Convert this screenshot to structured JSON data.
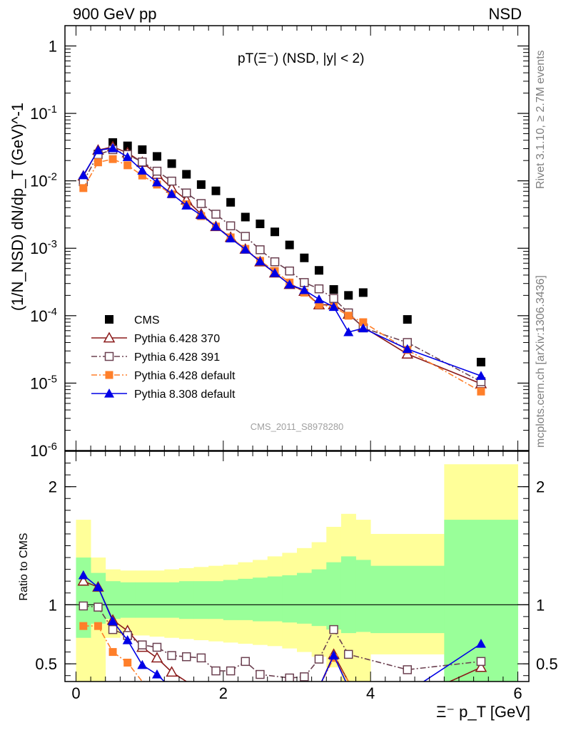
{
  "header": {
    "left": "900 GeV pp",
    "right": "NSD"
  },
  "side_text": {
    "top": "Rivet 3.1.10, ≥ 2.7M events",
    "bottom": "mcplots.cern.ch [arXiv:1306.3436]"
  },
  "watermark": "CMS_2011_S8978280",
  "chart_data": [
    {
      "type": "scatter",
      "panel": "main",
      "title": "pT(Ξ⁻) (NSD, |y| < 2)",
      "ylabel": "(1/N_NSD) dN/dp_T (GeV)^-1",
      "xlim": [
        -0.15,
        6.15
      ],
      "ylim": [
        1e-06,
        2
      ],
      "yscale": "log",
      "yticks": [
        "10^-6",
        "10^-5",
        "10^-4",
        "10^-3",
        "10^-2",
        "10^-1",
        "1"
      ],
      "legend": "lower-left",
      "series": [
        {
          "name": "CMS",
          "color": "#000000",
          "marker": "square-filled",
          "line": "none",
          "x": [
            0.1,
            0.3,
            0.5,
            0.7,
            0.9,
            1.1,
            1.3,
            1.5,
            1.7,
            1.9,
            2.1,
            2.3,
            2.5,
            2.7,
            2.9,
            3.1,
            3.3,
            3.5,
            3.7,
            3.9,
            4.5,
            5.5
          ],
          "y": [
            0.0098,
            0.025,
            0.037,
            0.033,
            0.029,
            0.023,
            0.018,
            0.0125,
            0.0088,
            0.0071,
            0.0048,
            0.0029,
            0.0023,
            0.00175,
            0.00112,
            0.00072,
            0.00047,
            0.000245,
            0.0002,
            0.00022,
            8.8e-05,
            2.05e-05
          ]
        },
        {
          "name": "Pythia 6.428 370",
          "color": "#8b1a1a",
          "marker": "triangle-open",
          "line": "solid",
          "x": [
            0.1,
            0.3,
            0.5,
            0.7,
            0.9,
            1.1,
            1.3,
            1.5,
            1.7,
            1.9,
            2.1,
            2.3,
            2.5,
            2.7,
            2.9,
            3.1,
            3.3,
            3.5,
            3.7,
            3.9,
            4.5,
            5.5
          ],
          "y": [
            0.0118,
            0.0285,
            0.032,
            0.026,
            0.0188,
            0.0125,
            0.0078,
            0.0052,
            0.0032,
            0.0021,
            0.00145,
            0.00097,
            0.00063,
            0.00043,
            0.00029,
            0.00023,
            0.000145,
            0.000145,
            0.000105,
            6.8e-05,
            2.7e-05,
            9.8e-06
          ]
        },
        {
          "name": "Pythia 6.428 391",
          "color": "#6b4050",
          "marker": "square-open",
          "line": "dashdot",
          "x": [
            0.1,
            0.3,
            0.5,
            0.7,
            0.9,
            1.1,
            1.3,
            1.5,
            1.7,
            1.9,
            2.1,
            2.3,
            2.5,
            2.7,
            2.9,
            3.1,
            3.3,
            3.5,
            3.7,
            3.9,
            4.5,
            5.5
          ],
          "y": [
            0.0097,
            0.0245,
            0.029,
            0.0245,
            0.019,
            0.0139,
            0.0099,
            0.0066,
            0.0046,
            0.0032,
            0.00215,
            0.0015,
            0.00095,
            0.00063,
            0.00046,
            0.00031,
            0.00025,
            0.00018,
            0.00011,
            6.6e-05,
            4e-05,
            1.05e-05
          ]
        },
        {
          "name": "Pythia 6.428 default",
          "color": "#ff7f2a",
          "marker": "square-filled",
          "line": "dashdot",
          "x": [
            0.1,
            0.3,
            0.5,
            0.7,
            0.9,
            1.1,
            1.3,
            1.5,
            1.7,
            1.9,
            2.1,
            2.3,
            2.5,
            2.7,
            2.9,
            3.1,
            3.3,
            3.5,
            3.7,
            3.9,
            4.5,
            5.5
          ],
          "y": [
            0.0078,
            0.0188,
            0.021,
            0.017,
            0.012,
            0.0088,
            0.0063,
            0.0045,
            0.003,
            0.0021,
            0.00145,
            0.00098,
            0.00065,
            0.00046,
            0.00031,
            0.00022,
            0.000145,
            0.000135,
            0.0001,
            8e-05,
            3.1e-05,
            7.5e-06
          ]
        },
        {
          "name": "Pythia 8.308 default",
          "color": "#0000e6",
          "marker": "triangle-filled",
          "line": "solid",
          "x": [
            0.1,
            0.3,
            0.5,
            0.7,
            0.9,
            1.1,
            1.3,
            1.5,
            1.7,
            1.9,
            2.1,
            2.3,
            2.5,
            2.7,
            2.9,
            3.1,
            3.3,
            3.5,
            3.7,
            3.9,
            4.5,
            5.5
          ],
          "y": [
            0.0121,
            0.0284,
            0.0305,
            0.0225,
            0.0142,
            0.0095,
            0.0064,
            0.0043,
            0.0031,
            0.0021,
            0.0014,
            0.00096,
            0.00064,
            0.00043,
            0.00029,
            0.00024,
            0.000175,
            0.000135,
            5.7e-05,
            6.5e-05,
            3.2e-05,
            1.28e-05
          ]
        }
      ]
    },
    {
      "type": "line",
      "panel": "ratio",
      "ylabel": "Ratio to CMS",
      "xlabel": "Ξ⁻ p_T [GeV]",
      "xlim": [
        -0.15,
        6.15
      ],
      "ylim": [
        0.35,
        2.3
      ],
      "xticks": [
        "0",
        "2",
        "4",
        "6"
      ],
      "yticks": [
        "0.5",
        "1",
        "2"
      ],
      "bands": {
        "x_edges": [
          0.0,
          0.2,
          0.4,
          0.6,
          0.8,
          1.0,
          1.2,
          1.4,
          1.6,
          1.8,
          2.0,
          2.2,
          2.4,
          2.6,
          2.8,
          3.0,
          3.2,
          3.4,
          3.6,
          3.8,
          4.0,
          5.0,
          6.0
        ],
        "inner_up": [
          1.4,
          1.27,
          1.2,
          1.19,
          1.19,
          1.19,
          1.19,
          1.2,
          1.2,
          1.2,
          1.21,
          1.22,
          1.23,
          1.24,
          1.25,
          1.27,
          1.3,
          1.36,
          1.41,
          1.38,
          1.33,
          1.72
        ],
        "inner_down": [
          0.72,
          0.84,
          0.88,
          0.89,
          0.89,
          0.89,
          0.89,
          0.88,
          0.88,
          0.88,
          0.87,
          0.87,
          0.86,
          0.86,
          0.85,
          0.84,
          0.82,
          0.79,
          0.76,
          0.77,
          0.76,
          0.35
        ],
        "outer_up": [
          1.72,
          1.4,
          1.3,
          1.29,
          1.29,
          1.29,
          1.3,
          1.31,
          1.32,
          1.33,
          1.34,
          1.36,
          1.38,
          1.41,
          1.44,
          1.48,
          1.53,
          1.66,
          1.77,
          1.72,
          1.6,
          2.19
        ],
        "outer_down": [
          0.35,
          0.35,
          0.72,
          0.74,
          0.74,
          0.73,
          0.72,
          0.71,
          0.7,
          0.69,
          0.68,
          0.67,
          0.66,
          0.65,
          0.63,
          0.6,
          0.56,
          0.47,
          0.35,
          0.35,
          0.58,
          0.35
        ],
        "inner_color": "#99ff99",
        "outer_color": "#ffff99"
      },
      "series": [
        {
          "name": "Pythia 6.428 370",
          "color": "#8b1a1a",
          "marker": "triangle-open",
          "line": "solid",
          "x": [
            0.1,
            0.3,
            0.5,
            0.7,
            0.9,
            1.1,
            1.3,
            1.5,
            3.3,
            3.5,
            3.7,
            4.9,
            5.5
          ],
          "y": [
            1.2,
            1.15,
            0.87,
            0.78,
            0.64,
            0.55,
            0.43,
            0.35,
            0.3,
            0.58,
            0.35,
            0.3,
            0.47
          ]
        },
        {
          "name": "Pythia 6.428 391",
          "color": "#6b4050",
          "marker": "square-open",
          "line": "dashdot",
          "x": [
            0.1,
            0.3,
            0.5,
            0.7,
            0.9,
            1.1,
            1.3,
            1.5,
            1.7,
            1.9,
            2.1,
            2.3,
            2.5,
            2.9,
            3.1,
            3.3,
            3.5,
            3.7,
            4.5,
            5.5
          ],
          "y": [
            0.99,
            0.98,
            0.79,
            0.74,
            0.66,
            0.64,
            0.57,
            0.56,
            0.55,
            0.44,
            0.44,
            0.52,
            0.41,
            0.38,
            0.39,
            0.54,
            0.79,
            0.58,
            0.45,
            0.52
          ]
        },
        {
          "name": "Pythia 6.428 default",
          "color": "#ff7f2a",
          "marker": "square-filled",
          "line": "dashdot",
          "x": [
            0.1,
            0.3,
            0.5,
            0.7,
            0.9,
            3.3,
            3.5,
            3.7
          ],
          "y": [
            0.82,
            0.82,
            0.6,
            0.51,
            0.35,
            0.3,
            0.55,
            0.35
          ]
        },
        {
          "name": "Pythia 8.308 default",
          "color": "#0000e6",
          "marker": "triangle-filled",
          "line": "solid",
          "x": [
            0.1,
            0.3,
            0.5,
            0.7,
            0.9,
            1.1,
            1.2,
            3.3,
            3.5,
            3.7,
            4.6,
            5.5
          ],
          "y": [
            1.25,
            1.15,
            0.86,
            0.7,
            0.49,
            0.41,
            0.35,
            0.3,
            0.57,
            0.3,
            0.3,
            0.67
          ]
        }
      ]
    }
  ]
}
